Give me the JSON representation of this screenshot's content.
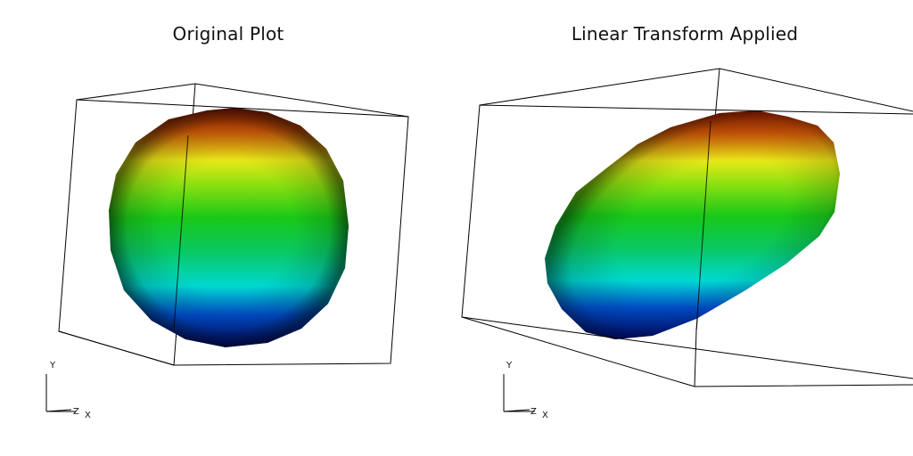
{
  "viewports": [
    {
      "title": "Original Plot",
      "axes": {
        "y": "Y",
        "z": "Z",
        "x": "X"
      }
    },
    {
      "title": "Linear Transform Applied",
      "axes": {
        "y": "Y",
        "z": "Z",
        "x": "X"
      }
    }
  ],
  "colormap": [
    "#000a80",
    "#0038c8",
    "#00d8d0",
    "#0ac832",
    "#20d020",
    "#b0e818",
    "#e8e818",
    "#e87a10",
    "#8a1a00"
  ]
}
